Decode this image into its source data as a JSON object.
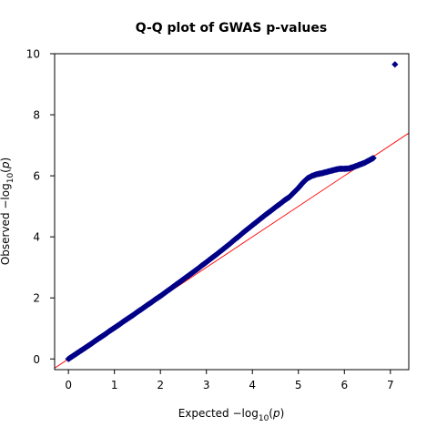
{
  "chart_data": {
    "type": "scatter",
    "title": "Q-Q plot of GWAS p-values",
    "xlabel": {
      "prefix": "Expected  −log",
      "sub": "10",
      "open": "(",
      "var": "p",
      "close": ")"
    },
    "ylabel": {
      "prefix": "Observed  −log",
      "sub": "10",
      "open": "(",
      "var": "p",
      "close": ")"
    },
    "xlim": [
      -0.3,
      7.4
    ],
    "ylim": [
      -0.35,
      10.0
    ],
    "x_ticks": [
      0,
      1,
      2,
      3,
      4,
      5,
      6,
      7
    ],
    "y_ticks": [
      0,
      2,
      4,
      6,
      8,
      10
    ],
    "grid": false,
    "reference_line": {
      "slope": 1,
      "intercept": 0,
      "color": "#ff0000"
    },
    "marker": {
      "shape": "diamond",
      "fill": "#000080",
      "edge": "#00008b"
    },
    "colors": {
      "points": "#000080",
      "reference": "#ff0000"
    },
    "series": [
      {
        "x": [
          0.0,
          0.1,
          0.2,
          0.3,
          0.4,
          0.5,
          0.6,
          0.7,
          0.8,
          0.9,
          1.0,
          1.1,
          1.2,
          1.3,
          1.4,
          1.5,
          1.6,
          1.7,
          1.8,
          1.9,
          2.0,
          2.1,
          2.2,
          2.3,
          2.4,
          2.5,
          2.6,
          2.7,
          2.8,
          2.9,
          3.0,
          3.1,
          3.2,
          3.3,
          3.4,
          3.5,
          3.6,
          3.7,
          3.8,
          3.9,
          4.0,
          4.1,
          4.2,
          4.3,
          4.4,
          4.5,
          4.6,
          4.7,
          4.8,
          4.9,
          5.0,
          5.1,
          5.2,
          5.3,
          5.4,
          5.5,
          5.6,
          5.7,
          5.8,
          5.9,
          6.0,
          6.1,
          6.22,
          6.43,
          6.63,
          7.1
        ],
        "y": [
          0.0,
          0.1,
          0.2,
          0.3,
          0.4,
          0.5,
          0.61,
          0.71,
          0.81,
          0.92,
          1.02,
          1.12,
          1.23,
          1.33,
          1.43,
          1.54,
          1.64,
          1.75,
          1.85,
          1.96,
          2.06,
          2.17,
          2.28,
          2.39,
          2.5,
          2.61,
          2.72,
          2.83,
          2.94,
          3.06,
          3.17,
          3.29,
          3.4,
          3.52,
          3.64,
          3.76,
          3.89,
          4.01,
          4.14,
          4.26,
          4.38,
          4.5,
          4.62,
          4.74,
          4.85,
          4.97,
          5.08,
          5.2,
          5.3,
          5.45,
          5.6,
          5.78,
          5.92,
          6.0,
          6.05,
          6.08,
          6.12,
          6.16,
          6.2,
          6.23,
          6.23,
          6.24,
          6.3,
          6.42,
          6.58,
          9.65
        ]
      }
    ]
  }
}
